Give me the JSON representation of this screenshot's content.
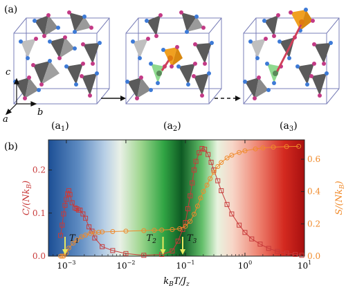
{
  "panel_a": {
    "label": "(a)",
    "axes": {
      "c": "c",
      "b": "b",
      "a": "a"
    },
    "sublabels": [
      {
        "main": "(a",
        "sub": "1",
        "close": ")"
      },
      {
        "main": "(a",
        "sub": "2",
        "close": ")"
      },
      {
        "main": "(a",
        "sub": "3",
        "close": ")"
      }
    ],
    "colors": {
      "cube": "#7a7fb8",
      "blue_site": "#3d7ad6",
      "pink_site": "#c33a86",
      "tetra_dark": "#5a5a5a",
      "tetra_light": "#bfbfbf",
      "tetra_orange": "#f0a020",
      "tetra_green": "#8fd98f",
      "string": "#d0405a"
    }
  },
  "panel_b": {
    "label": "(b)",
    "left_ylabel": "C/(Nk",
    "left_ylabel_sub": "B",
    "right_ylabel": "S/(Nk",
    "right_ylabel_sub": "B",
    "xlabel": "k",
    "xlabel_sub": "B",
    "xlabel_rest": "T/J",
    "xlabel_sub2": "z",
    "arrow_labels": [
      {
        "main": "T",
        "sub": "1"
      },
      {
        "main": "T",
        "sub": "2"
      },
      {
        "main": "T",
        "sub": "3"
      }
    ],
    "colors": {
      "C": "#c83a3a",
      "S": "#f08a2a",
      "arrow": "#e8e860"
    }
  },
  "chart_data": {
    "type": "scatter",
    "xscale": "log",
    "xlim": [
      0.0005,
      10
    ],
    "ylim_left": [
      0,
      0.27
    ],
    "ylim_right": [
      0,
      0.72
    ],
    "x_ticks": [
      {
        "value": 0.001,
        "base": "10",
        "exp": "−3"
      },
      {
        "value": 0.01,
        "base": "10",
        "exp": "−2"
      },
      {
        "value": 0.1,
        "base": "10",
        "exp": "−1"
      },
      {
        "value": 1,
        "base": "10",
        "exp": "0"
      },
      {
        "value": 10,
        "base": "10",
        "exp": "1"
      }
    ],
    "y_ticks_left": [
      "0.0",
      "0.1",
      "0.2"
    ],
    "y_ticks_right": [
      "0.0",
      "0.2",
      "0.4",
      "0.6"
    ],
    "arrows_x": [
      0.00095,
      0.042,
      0.09
    ],
    "series": [
      {
        "axis": "left",
        "color": "#c83a3a",
        "points": [
          [
            0.0008,
            0.048
          ],
          [
            0.00085,
            0.072
          ],
          [
            0.0009,
            0.098
          ],
          [
            0.00095,
            0.118
          ],
          [
            0.001,
            0.132
          ],
          [
            0.00105,
            0.145
          ],
          [
            0.0011,
            0.152
          ],
          [
            0.00115,
            0.143
          ],
          [
            0.00125,
            0.124
          ],
          [
            0.0014,
            0.112
          ],
          [
            0.0015,
            0.11
          ],
          [
            0.0016,
            0.107
          ],
          [
            0.0017,
            0.107
          ],
          [
            0.0019,
            0.098
          ],
          [
            0.0021,
            0.088
          ],
          [
            0.0024,
            0.068
          ],
          [
            0.0027,
            0.058
          ],
          [
            0.003,
            0.042
          ],
          [
            0.004,
            0.022
          ],
          [
            0.006,
            0.013
          ],
          [
            0.01,
            0.006
          ],
          [
            0.02,
            0.002
          ],
          [
            0.04,
            0.004
          ],
          [
            0.06,
            0.012
          ],
          [
            0.075,
            0.035
          ],
          [
            0.09,
            0.062
          ],
          [
            0.1,
            0.078
          ],
          [
            0.11,
            0.11
          ],
          [
            0.12,
            0.14
          ],
          [
            0.13,
            0.17
          ],
          [
            0.14,
            0.2
          ],
          [
            0.15,
            0.22
          ],
          [
            0.17,
            0.24
          ],
          [
            0.19,
            0.25
          ],
          [
            0.21,
            0.248
          ],
          [
            0.24,
            0.236
          ],
          [
            0.27,
            0.218
          ],
          [
            0.3,
            0.2
          ],
          [
            0.35,
            0.175
          ],
          [
            0.4,
            0.152
          ],
          [
            0.5,
            0.12
          ],
          [
            0.6,
            0.098
          ],
          [
            0.8,
            0.072
          ],
          [
            1.0,
            0.055
          ],
          [
            1.3,
            0.04
          ],
          [
            1.8,
            0.028
          ],
          [
            2.5,
            0.018
          ],
          [
            3.5,
            0.011
          ],
          [
            5,
            0.007
          ],
          [
            7,
            0.004
          ],
          [
            9,
            0.002
          ]
        ]
      },
      {
        "axis": "right",
        "color": "#f08a2a",
        "points": [
          [
            0.0008,
            0.0
          ],
          [
            0.00085,
            0.0
          ],
          [
            0.0009,
            0.0
          ],
          [
            0.001,
            0.02
          ],
          [
            0.0011,
            0.05
          ],
          [
            0.0013,
            0.08
          ],
          [
            0.0015,
            0.1
          ],
          [
            0.0018,
            0.12
          ],
          [
            0.0021,
            0.13
          ],
          [
            0.0025,
            0.14
          ],
          [
            0.003,
            0.145
          ],
          [
            0.0035,
            0.148
          ],
          [
            0.004,
            0.15
          ],
          [
            0.006,
            0.152
          ],
          [
            0.01,
            0.155
          ],
          [
            0.02,
            0.158
          ],
          [
            0.03,
            0.16
          ],
          [
            0.04,
            0.162
          ],
          [
            0.06,
            0.165
          ],
          [
            0.08,
            0.17
          ],
          [
            0.1,
            0.185
          ],
          [
            0.12,
            0.215
          ],
          [
            0.14,
            0.26
          ],
          [
            0.16,
            0.31
          ],
          [
            0.18,
            0.36
          ],
          [
            0.2,
            0.4
          ],
          [
            0.23,
            0.44
          ],
          [
            0.26,
            0.48
          ],
          [
            0.3,
            0.52
          ],
          [
            0.35,
            0.555
          ],
          [
            0.4,
            0.58
          ],
          [
            0.5,
            0.608
          ],
          [
            0.6,
            0.625
          ],
          [
            0.8,
            0.642
          ],
          [
            1.0,
            0.652
          ],
          [
            1.5,
            0.664
          ],
          [
            2,
            0.67
          ],
          [
            3,
            0.675
          ],
          [
            5,
            0.678
          ],
          [
            8,
            0.68
          ]
        ]
      }
    ]
  }
}
